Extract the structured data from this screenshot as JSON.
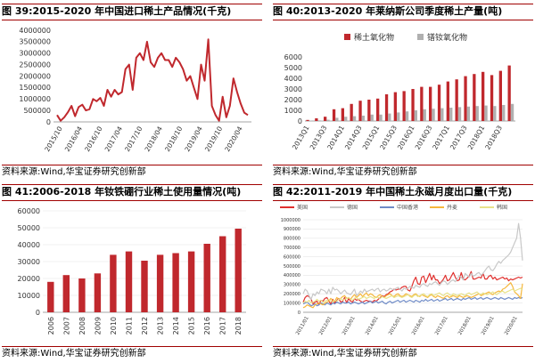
{
  "panels": [
    {
      "title": "图 39:2015-2020 年中国进口稀土产品情况(千克)",
      "source": "资料来源:Wind,华宝证券研究创新部"
    },
    {
      "title": "图 40:2013-2020 年莱纳斯公司季度稀土产量(吨)",
      "source": "资料来源:Wind,华宝证券研究创新部"
    },
    {
      "title": "图 41:2006-2018 年钕铁硼行业稀土使用量情况(吨)",
      "source": "资料来源:Wind,华宝证券研究创新部"
    },
    {
      "title": "图 42:2011-2019 年中国稀土永磁月度出口量(千克)",
      "source": "资料来源:Wind,华宝证券研究创新部"
    }
  ],
  "chart_data": [
    {
      "type": "line",
      "title": "2015-2020 年中国进口稀土产品情况(千克)",
      "ylim": [
        0,
        4000000
      ],
      "yticks": [
        "4000000",
        "3500000",
        "3000000",
        "2500000",
        "2000000",
        "1500000",
        "1000000",
        "500000",
        "0"
      ],
      "xtick_labels": [
        "2015/10",
        "2016/04",
        "2016/10",
        "2017/04",
        "2017/10",
        "2018/04",
        "2018/10",
        "2019/04",
        "2019/10",
        "2020/04"
      ],
      "x_start": "2015/10",
      "color": "#c0282d",
      "values": [
        300000,
        50000,
        200000,
        420000,
        700000,
        250000,
        650000,
        750000,
        500000,
        550000,
        1000000,
        900000,
        1050000,
        700000,
        1400000,
        1100000,
        1400000,
        1200000,
        1300000,
        2300000,
        2500000,
        1400000,
        2800000,
        3000000,
        2700000,
        3500000,
        2600000,
        2400000,
        2800000,
        3000000,
        2700000,
        2700000,
        2400000,
        2800000,
        2600000,
        2300000,
        1800000,
        2000000,
        1500000,
        1000000,
        2500000,
        1800000,
        3600000,
        700000,
        300000,
        50000,
        1100000,
        200000,
        700000,
        1900000,
        1300000,
        800000,
        400000,
        300000
      ]
    },
    {
      "type": "bar",
      "title": "2013-2020 年莱纳斯公司季度稀土产量(吨)",
      "ylim": [
        0,
        6000
      ],
      "yticks": [
        "6000",
        "5000",
        "4000",
        "3000",
        "2000",
        "1000",
        "0"
      ],
      "categories": [
        "2013Q1",
        "2013Q2",
        "2013Q3",
        "2013Q4",
        "2014Q1",
        "2014Q2",
        "2014Q3",
        "2014Q4",
        "2015Q1",
        "2015Q2",
        "2015Q3",
        "2015Q4",
        "2016Q1",
        "2016Q2",
        "2016Q3",
        "2016Q4",
        "2017Q1",
        "2017Q2",
        "2017Q3",
        "2017Q4",
        "2018Q1",
        "2018Q2",
        "2018Q3",
        "2018Q4"
      ],
      "xtick_labels": [
        "2013Q1",
        "",
        "2013Q3",
        "",
        "2014Q1",
        "",
        "2014Q3",
        "",
        "2015Q1",
        "",
        "2015Q3",
        "",
        "2016Q1",
        "",
        "2016Q3",
        "",
        "2017Q1",
        "",
        "2017Q3",
        "",
        "2018Q1",
        "",
        "2018Q3",
        ""
      ],
      "legend_position": "top",
      "series": [
        {
          "name": "稀土氧化物",
          "color": "#c0282d",
          "values": [
            100,
            250,
            400,
            1100,
            1200,
            1600,
            1900,
            2000,
            2100,
            2500,
            2700,
            2800,
            3000,
            3200,
            3200,
            3400,
            3700,
            3900,
            4200,
            4400,
            4600,
            4300,
            4700,
            5200
          ]
        },
        {
          "name": "镨钕氧化物",
          "color": "#b0b0b0",
          "values": [
            30,
            60,
            120,
            300,
            400,
            450,
            500,
            600,
            600,
            700,
            800,
            900,
            1000,
            1100,
            1150,
            1200,
            1250,
            1300,
            1350,
            1400,
            1450,
            1400,
            1500,
            1600
          ]
        }
      ]
    },
    {
      "type": "bar",
      "title": "2006-2018 年钕铁硼行业稀土使用量情况(吨)",
      "ylim": [
        0,
        60000
      ],
      "yticks": [
        "60000",
        "50000",
        "40000",
        "30000",
        "20000",
        "10000",
        "0"
      ],
      "categories": [
        "2006",
        "2007",
        "2008",
        "2009",
        "2010",
        "2011",
        "2012",
        "2013",
        "2014",
        "2015",
        "2016",
        "2017",
        "2018"
      ],
      "color": "#c0282d",
      "values": [
        18000,
        22000,
        20000,
        23000,
        34000,
        36000,
        30500,
        34000,
        35000,
        36000,
        40500,
        45000,
        49500
      ]
    },
    {
      "type": "line",
      "title": "2011-2019 年中国稀土永磁月度出口量(千克)",
      "ylim": [
        0,
        1000000
      ],
      "yticks": [
        "1000000",
        "900000",
        "800000",
        "700000",
        "600000",
        "500000",
        "400000",
        "300000",
        "200000",
        "100000",
        "0"
      ],
      "xtick_labels": [
        "2011/01",
        "2012/01",
        "2013/01",
        "2014/01",
        "2015/01",
        "2016/01",
        "2017/01",
        "2018/01",
        "2019/01",
        "2020/01"
      ],
      "legend_position": "top",
      "series": [
        {
          "name": "美国",
          "color": "#e0302e",
          "values": [
            110000,
            160000,
            180000,
            170000,
            140000,
            90000,
            110000,
            120000,
            80000,
            130000,
            120000,
            150000,
            160000,
            120000,
            90000,
            140000,
            100000,
            130000,
            150000,
            110000,
            120000,
            160000,
            100000,
            150000,
            120000,
            110000,
            150000,
            130000,
            140000,
            120000,
            110000,
            120000,
            130000,
            120000,
            120000,
            110000,
            130000,
            120000,
            140000,
            160000,
            180000,
            170000,
            190000,
            200000,
            220000,
            230000,
            250000,
            240000,
            250000,
            250000,
            270000,
            280000,
            280000,
            240000,
            230000,
            280000,
            340000,
            380000,
            310000,
            300000,
            380000,
            390000,
            320000,
            370000,
            420000,
            350000,
            400000,
            350000,
            350000,
            310000,
            330000,
            360000,
            400000,
            340000,
            350000,
            390000,
            430000,
            380000,
            340000,
            350000,
            430000,
            360000,
            350000,
            370000,
            390000,
            440000,
            360000,
            360000,
            370000,
            380000,
            370000,
            420000,
            360000,
            360000,
            390000,
            400000,
            360000,
            380000,
            350000,
            360000,
            370000,
            380000,
            360000,
            370000,
            340000,
            360000,
            350000,
            360000,
            370000,
            380000,
            370000,
            380000
          ]
        },
        {
          "name": "德国",
          "color": "#c8c8c8",
          "values": [
            200000,
            250000,
            230000,
            180000,
            140000,
            200000,
            180000,
            220000,
            200000,
            250000,
            240000,
            230000,
            200000,
            250000,
            200000,
            270000,
            240000,
            250000,
            230000,
            200000,
            220000,
            240000,
            210000,
            200000,
            190000,
            220000,
            250000,
            180000,
            200000,
            230000,
            210000,
            250000,
            220000,
            230000,
            240000,
            250000,
            230000,
            250000,
            260000,
            220000,
            240000,
            250000,
            230000,
            240000,
            260000,
            250000,
            240000,
            260000,
            270000,
            250000,
            230000,
            260000,
            250000,
            260000,
            280000,
            270000,
            260000,
            290000,
            280000,
            270000,
            300000,
            310000,
            290000,
            280000,
            310000,
            300000,
            320000,
            330000,
            310000,
            290000,
            320000,
            340000,
            330000,
            300000,
            320000,
            340000,
            350000,
            330000,
            360000,
            400000,
            380000,
            350000,
            420000,
            400000,
            380000,
            420000,
            390000,
            400000,
            420000,
            430000,
            400000,
            420000,
            450000,
            480000,
            500000,
            460000,
            450000,
            480000,
            520000,
            550000,
            530000,
            560000,
            580000,
            600000,
            620000,
            650000,
            700000,
            750000,
            800000,
            960000,
            800000,
            560000
          ]
        },
        {
          "name": "中国香港",
          "color": "#6f8bc7",
          "values": [
            90000,
            100000,
            110000,
            90000,
            70000,
            80000,
            90000,
            70000,
            80000,
            100000,
            90000,
            80000,
            100000,
            90000,
            80000,
            100000,
            90000,
            110000,
            100000,
            90000,
            110000,
            100000,
            100000,
            110000,
            90000,
            100000,
            110000,
            100000,
            90000,
            100000,
            110000,
            90000,
            100000,
            110000,
            120000,
            100000,
            110000,
            120000,
            100000,
            110000,
            120000,
            100000,
            90000,
            110000,
            120000,
            100000,
            110000,
            120000,
            130000,
            110000,
            120000,
            130000,
            110000,
            120000,
            130000,
            120000,
            110000,
            130000,
            120000,
            110000,
            130000,
            120000,
            140000,
            120000,
            130000,
            140000,
            120000,
            130000,
            140000,
            120000,
            130000,
            140000,
            150000,
            130000,
            140000,
            150000,
            130000,
            140000,
            150000,
            140000,
            130000,
            150000,
            140000,
            150000,
            160000,
            140000,
            150000,
            160000,
            140000,
            150000,
            160000,
            140000,
            150000,
            160000,
            150000,
            140000,
            150000,
            160000,
            150000,
            140000,
            160000,
            150000,
            140000,
            150000,
            160000,
            150000,
            140000,
            160000,
            150000,
            160000,
            150000,
            160000
          ]
        },
        {
          "name": "丹麦",
          "color": "#f6b73c",
          "values": [
            50000,
            60000,
            80000,
            70000,
            60000,
            50000,
            80000,
            90000,
            100000,
            90000,
            80000,
            100000,
            110000,
            120000,
            150000,
            130000,
            120000,
            160000,
            140000,
            150000,
            170000,
            180000,
            150000,
            160000,
            140000,
            170000,
            190000,
            160000,
            180000,
            200000,
            170000,
            190000,
            210000,
            180000,
            200000,
            190000,
            170000,
            160000,
            180000,
            190000,
            170000,
            160000,
            180000,
            190000,
            200000,
            180000,
            170000,
            190000,
            200000,
            180000,
            170000,
            180000,
            200000,
            190000,
            180000,
            170000,
            190000,
            200000,
            180000,
            170000,
            190000,
            180000,
            170000,
            160000,
            180000,
            190000,
            170000,
            160000,
            180000,
            170000,
            160000,
            150000,
            170000,
            180000,
            160000,
            170000,
            180000,
            170000,
            160000,
            180000,
            170000,
            160000,
            170000,
            180000,
            170000,
            160000,
            170000,
            180000,
            190000,
            200000,
            180000,
            190000,
            200000,
            210000,
            220000,
            200000,
            190000,
            210000,
            220000,
            230000,
            220000,
            250000,
            260000,
            280000,
            300000,
            320000,
            280000,
            220000,
            200000,
            180000,
            150000,
            310000
          ]
        },
        {
          "name": "韩国",
          "color": "#e8e28a",
          "values": [
            100000,
            120000,
            110000,
            130000,
            100000,
            110000,
            120000,
            140000,
            120000,
            130000,
            110000,
            120000,
            130000,
            140000,
            120000,
            110000,
            130000,
            120000,
            140000,
            150000,
            130000,
            140000,
            150000,
            160000,
            140000,
            130000,
            150000,
            160000,
            140000,
            150000,
            160000,
            170000,
            150000,
            160000,
            170000,
            160000,
            150000,
            170000,
            160000,
            150000,
            170000,
            160000,
            150000,
            160000,
            170000,
            180000,
            160000,
            170000,
            180000,
            170000,
            160000,
            170000,
            180000,
            190000,
            170000,
            160000,
            180000,
            190000,
            170000,
            180000,
            190000,
            200000,
            180000,
            170000,
            190000,
            200000,
            180000,
            190000,
            200000,
            210000,
            190000,
            180000,
            200000,
            210000,
            190000,
            180000,
            200000,
            190000,
            180000,
            190000,
            200000,
            190000,
            180000,
            200000,
            210000,
            190000,
            200000,
            210000,
            220000,
            200000,
            190000,
            210000,
            200000,
            190000,
            200000,
            210000,
            220000,
            200000,
            190000,
            210000,
            220000,
            230000,
            210000,
            220000,
            230000,
            240000,
            250000,
            230000,
            240000,
            250000,
            260000,
            240000
          ]
        }
      ]
    }
  ]
}
